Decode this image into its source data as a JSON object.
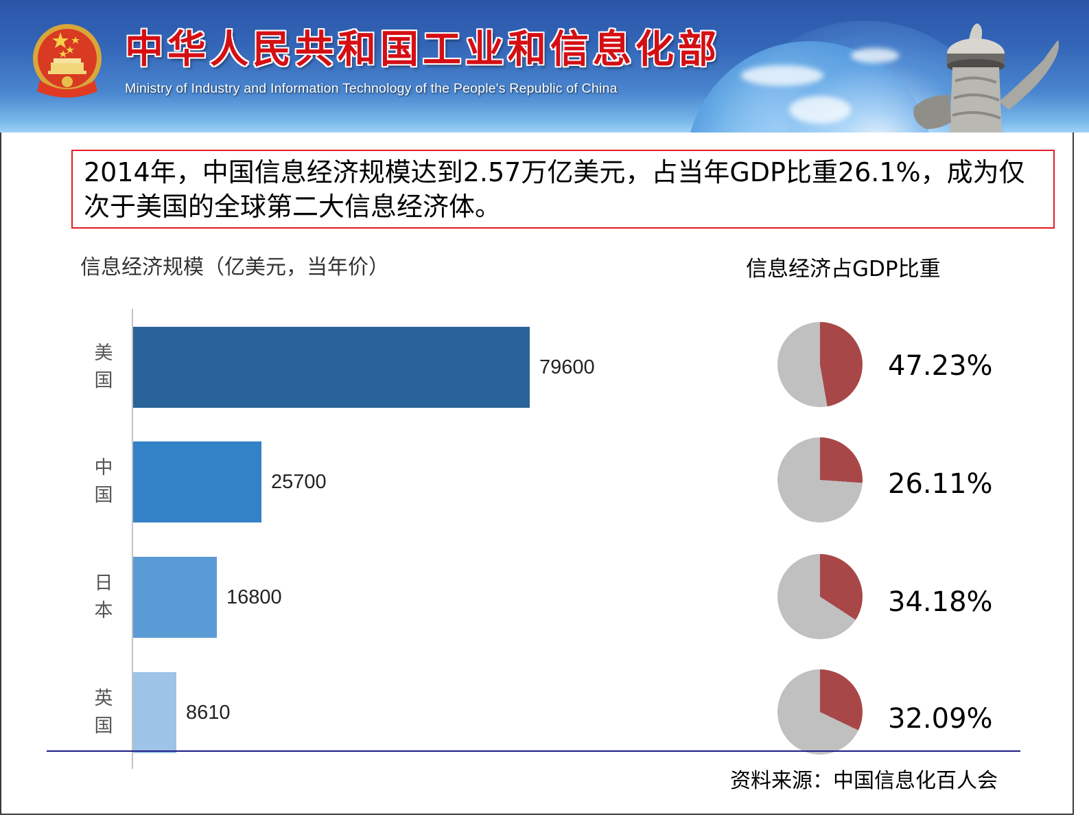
{
  "banner": {
    "title": "中华人民共和国工业和信息化部",
    "subtitle": "Ministry of Industry and Information Technology of the People's Republic of China",
    "emblem_icon": "national-emblem-icon",
    "pillar_icon": "huabiao-pillar-icon"
  },
  "callout": {
    "text": "2014年，中国信息经济规模达到2.57万亿美元，占当年GDP比重26.1%，成为仅次于美国的全球第二大信息经济体。",
    "border_color": "#e11d26"
  },
  "source": "资料来源：中国信息化百人会",
  "colors": {
    "pie_share": "#a84747",
    "pie_rest": "#c0c0c0",
    "axis": "#c2c2c2",
    "baseline": "#1d1a86"
  },
  "chart_data": [
    {
      "type": "bar",
      "orientation": "horizontal",
      "title": "信息经济规模（亿美元，当年价）",
      "xlabel": "",
      "ylabel": "",
      "categories": [
        "美国",
        "中国",
        "日本",
        "英国"
      ],
      "values": [
        79600,
        25700,
        16800,
        8610
      ],
      "value_labels": [
        "79600",
        "25700",
        "16800",
        "8610"
      ],
      "bar_colors": [
        "#2a6399",
        "#3381c6",
        "#5a9bd5",
        "#9dc3e6"
      ],
      "xlim": [
        0,
        79600
      ],
      "grid": false,
      "legend": null
    },
    {
      "type": "pie",
      "title": "信息经济占GDP比重",
      "categories": [
        "美国",
        "中国",
        "日本",
        "英国"
      ],
      "values": [
        47.23,
        26.11,
        34.18,
        32.09
      ],
      "value_labels": [
        "47.23%",
        "26.11%",
        "34.18%",
        "32.09%"
      ],
      "slice_colors": {
        "share": "#a84747",
        "rest": "#c0c0c0"
      }
    }
  ]
}
